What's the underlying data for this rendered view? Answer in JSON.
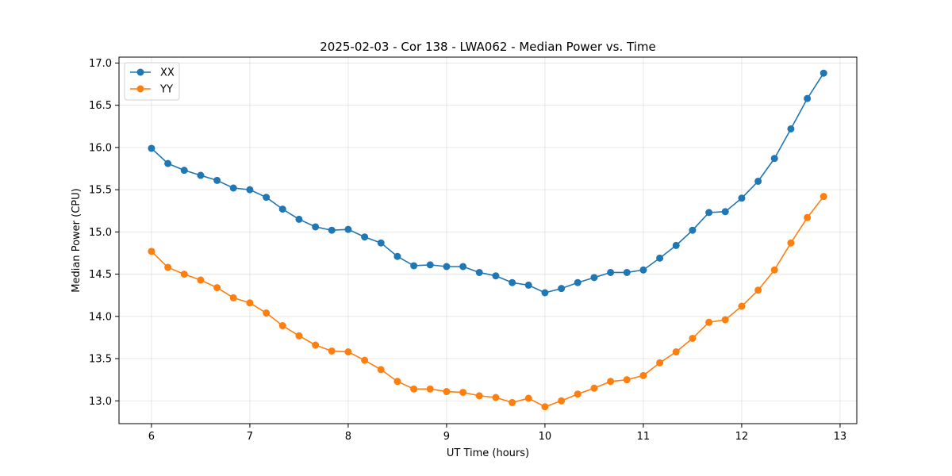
{
  "chart_data": {
    "type": "line",
    "title": "2025-02-03 - Cor 138 - LWA062 - Median Power vs. Time",
    "xlabel": "UT Time (hours)",
    "ylabel": "Median Power (CPU)",
    "xlim": [
      5.67,
      13.17
    ],
    "ylim": [
      12.73,
      17.07
    ],
    "x_ticks": [
      6,
      7,
      8,
      9,
      10,
      11,
      12,
      13
    ],
    "x_tick_labels": [
      "6",
      "7",
      "8",
      "9",
      "10",
      "11",
      "12",
      "13"
    ],
    "y_ticks": [
      13.0,
      13.5,
      14.0,
      14.5,
      15.0,
      15.5,
      16.0,
      16.5,
      17.0
    ],
    "y_tick_labels": [
      "13.0",
      "13.5",
      "14.0",
      "14.5",
      "15.0",
      "15.5",
      "16.0",
      "16.5",
      "17.0"
    ],
    "grid": true,
    "legend_position": "upper-left",
    "x": [
      6.0,
      6.167,
      6.333,
      6.5,
      6.667,
      6.833,
      7.0,
      7.167,
      7.333,
      7.5,
      7.667,
      7.833,
      8.0,
      8.167,
      8.333,
      8.5,
      8.667,
      8.833,
      9.0,
      9.167,
      9.333,
      9.5,
      9.667,
      9.833,
      10.0,
      10.167,
      10.333,
      10.5,
      10.667,
      10.833,
      11.0,
      11.167,
      11.333,
      11.5,
      11.667,
      11.833,
      12.0,
      12.167,
      12.333,
      12.5,
      12.667,
      12.833
    ],
    "series": [
      {
        "name": "XX",
        "color": "#1f77b4",
        "values": [
          15.99,
          15.81,
          15.73,
          15.67,
          15.61,
          15.52,
          15.5,
          15.41,
          15.27,
          15.15,
          15.06,
          15.02,
          15.03,
          14.94,
          14.87,
          14.71,
          14.6,
          14.61,
          14.59,
          14.59,
          14.52,
          14.48,
          14.4,
          14.37,
          14.28,
          14.33,
          14.4,
          14.46,
          14.52,
          14.52,
          14.55,
          14.69,
          14.84,
          15.02,
          15.23,
          15.24,
          15.4,
          15.6,
          15.87,
          16.22,
          16.58,
          16.88
        ]
      },
      {
        "name": "YY",
        "color": "#ff7f0e",
        "values": [
          14.77,
          14.58,
          14.5,
          14.43,
          14.34,
          14.22,
          14.16,
          14.04,
          13.89,
          13.77,
          13.66,
          13.59,
          13.58,
          13.48,
          13.37,
          13.23,
          13.14,
          13.14,
          13.11,
          13.1,
          13.06,
          13.04,
          12.98,
          13.03,
          12.93,
          13.0,
          13.08,
          13.15,
          13.23,
          13.25,
          13.3,
          13.45,
          13.58,
          13.74,
          13.93,
          13.96,
          14.12,
          14.31,
          14.55,
          14.87,
          15.17,
          15.42
        ]
      }
    ]
  }
}
